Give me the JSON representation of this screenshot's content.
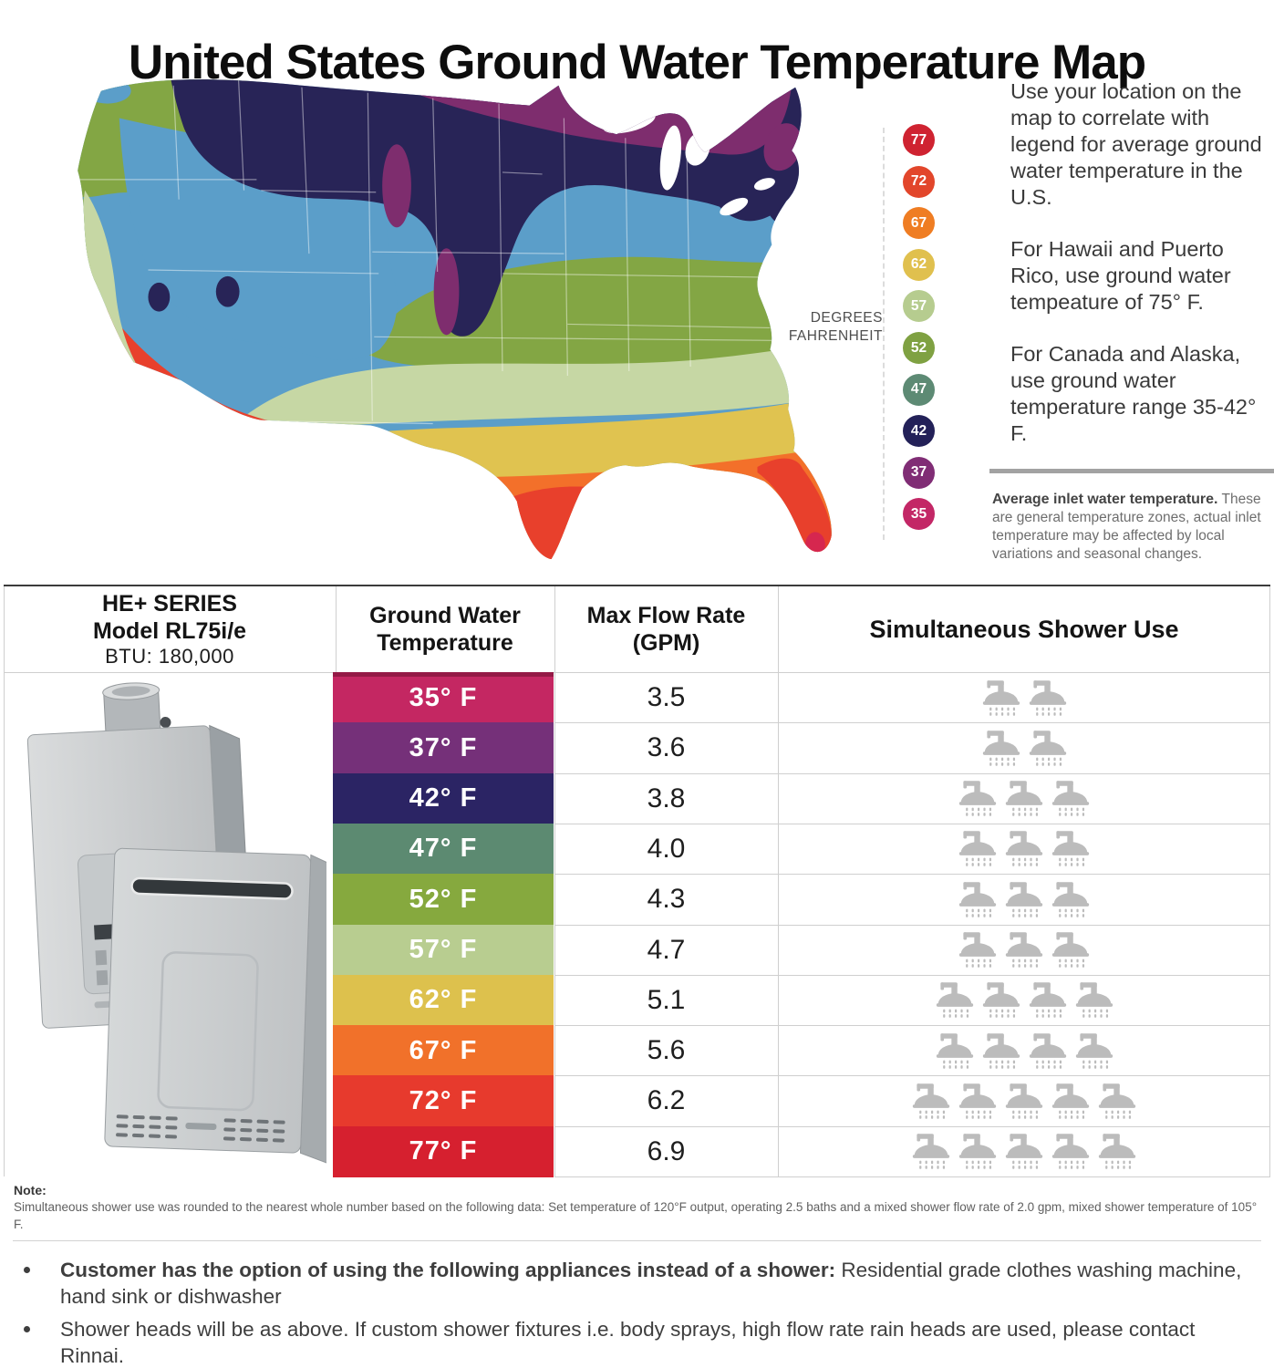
{
  "title": "United States Ground Water Temperature Map",
  "map": {
    "degrees_label_line1": "DEGREES",
    "degrees_label_line2": "FAHRENHEIT",
    "legend": [
      {
        "value": "77",
        "color": "#cf2331"
      },
      {
        "value": "72",
        "color": "#e2462b"
      },
      {
        "value": "67",
        "color": "#ef7d23"
      },
      {
        "value": "62",
        "color": "#e0c04e"
      },
      {
        "value": "57",
        "color": "#b6cc8f"
      },
      {
        "value": "52",
        "color": "#7fa142"
      },
      {
        "value": "47",
        "color": "#5d8a74"
      },
      {
        "value": "42",
        "color": "#232158"
      },
      {
        "value": "37",
        "color": "#802d75"
      },
      {
        "value": "35",
        "color": "#c32766"
      }
    ],
    "zone_colors": {
      "navy": "#282457",
      "purple": "#7e2d6e",
      "magenta": "#d6275a",
      "blue": "#5b9ec9",
      "green": "#83a644",
      "pale": "#c6d7a4",
      "yellow": "#e0c350",
      "orange": "#f3702a",
      "red": "#e8402c",
      "crimson": "#d6274f"
    }
  },
  "sidebar": {
    "paragraphs": [
      "Use your location on the map to correlate with legend for average ground water temperature in the U.S.",
      "For Hawaii and Puerto Rico, use ground water tempeature of 75° F.",
      "For Canada and Alaska, use ground water temperature range 35-42° F."
    ],
    "note_bold": "Average inlet water temperature.",
    "note_rest": " These are general temperature zones, actual inlet temperature may be affected by local variations and seasonal changes."
  },
  "table": {
    "col1_header": {
      "line1": "HE+ SERIES",
      "line2": "Model RL75i/e",
      "line3": "BTU: 180,000"
    },
    "col2_header": "Ground Water Temperature",
    "col3_header": "Max Flow Rate (GPM)",
    "col4_header": "Simultaneous Shower Use",
    "rows": [
      {
        "temp": "35° F",
        "color": "#c42762",
        "gpm": "3.5",
        "showers": 2
      },
      {
        "temp": "37° F",
        "color": "#753079",
        "gpm": "3.6",
        "showers": 2
      },
      {
        "temp": "42° F",
        "color": "#2b2464",
        "gpm": "3.8",
        "showers": 3
      },
      {
        "temp": "47° F",
        "color": "#5c8a71",
        "gpm": "4.0",
        "showers": 3
      },
      {
        "temp": "52° F",
        "color": "#86a93e",
        "gpm": "4.3",
        "showers": 3
      },
      {
        "temp": "57° F",
        "color": "#b8cd90",
        "gpm": "4.7",
        "showers": 3
      },
      {
        "temp": "62° F",
        "color": "#ddc14d",
        "gpm": "5.1",
        "showers": 4
      },
      {
        "temp": "67° F",
        "color": "#f1712a",
        "gpm": "5.6",
        "showers": 4
      },
      {
        "temp": "72° F",
        "color": "#e73a2d",
        "gpm": "6.2",
        "showers": 5
      },
      {
        "temp": "77° F",
        "color": "#d6202f",
        "gpm": "6.9",
        "showers": 5
      }
    ]
  },
  "note": {
    "label": "Note:",
    "text": "Simultaneous shower use was rounded to the nearest whole number based on the following data: Set temperature of 120°F output, operating 2.5 baths and a mixed shower flow rate of 2.0 gpm, mixed shower temperature of 105° F."
  },
  "bullets": [
    {
      "bold": "Customer has the option of using the following appliances instead of a shower:",
      "rest": " Residential grade clothes washing machine, hand sink or dishwasher"
    },
    {
      "bold": "",
      "rest": "Shower heads will be as above. If custom shower fixtures  i.e. body sprays, high flow rate rain heads are used, please contact Rinnai."
    }
  ]
}
